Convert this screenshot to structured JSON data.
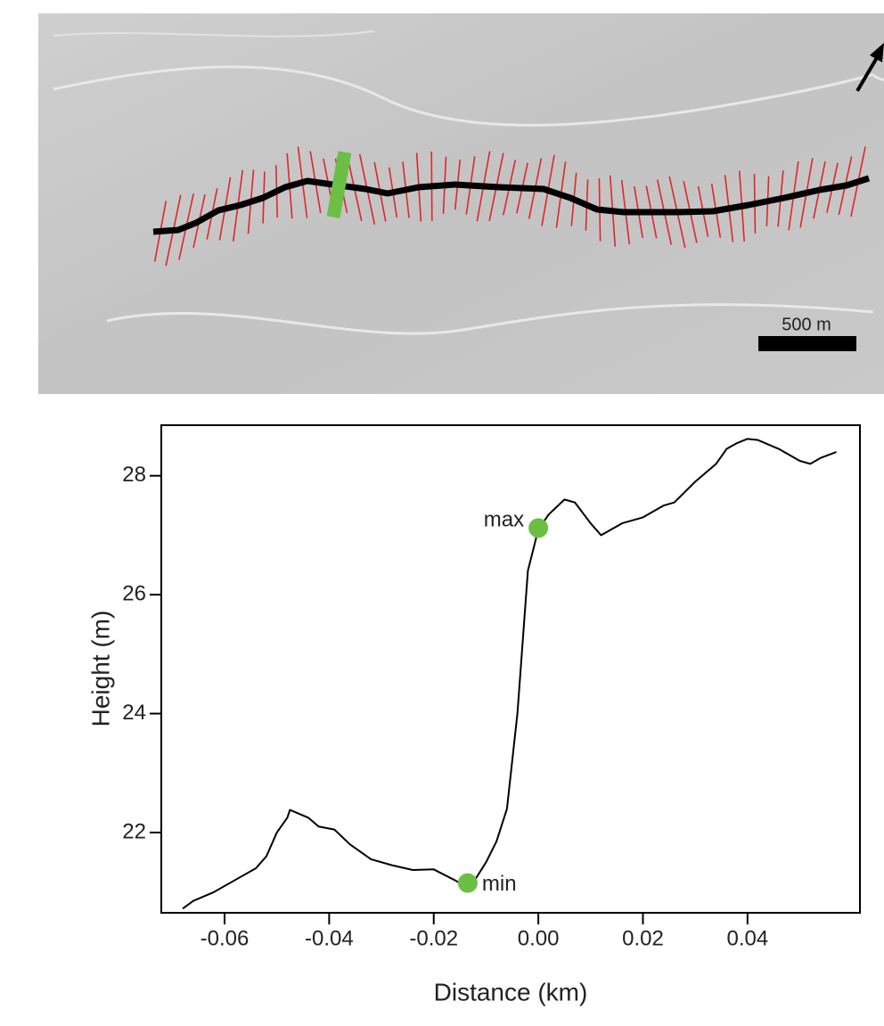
{
  "map": {
    "scale_label": "500 m"
  },
  "chart_data": {
    "type": "line",
    "x_label": "Distance (km)",
    "y_label": "Height (m)",
    "x": [
      -0.068,
      -0.066,
      -0.062,
      -0.058,
      -0.054,
      -0.052,
      -0.05,
      -0.048,
      -0.0475,
      -0.044,
      -0.042,
      -0.039,
      -0.036,
      -0.032,
      -0.028,
      -0.024,
      -0.02,
      -0.016,
      -0.014,
      -0.0125,
      -0.01,
      -0.008,
      -0.006,
      -0.004,
      -0.002,
      0.0,
      0.002,
      0.005,
      0.007,
      0.01,
      0.012,
      0.013,
      0.016,
      0.02,
      0.024,
      0.026,
      0.03,
      0.034,
      0.036,
      0.038,
      0.04,
      0.042,
      0.046,
      0.05,
      0.052,
      0.054,
      0.057
    ],
    "values": [
      20.72,
      20.85,
      21.0,
      21.2,
      21.4,
      21.6,
      22.0,
      22.25,
      22.38,
      22.25,
      22.1,
      22.05,
      21.8,
      21.55,
      21.45,
      21.37,
      21.38,
      21.2,
      21.1,
      21.15,
      21.5,
      21.85,
      22.4,
      24.0,
      26.4,
      27.1,
      27.35,
      27.6,
      27.55,
      27.2,
      27.0,
      27.05,
      27.2,
      27.3,
      27.5,
      27.55,
      27.9,
      28.2,
      28.45,
      28.55,
      28.62,
      28.6,
      28.45,
      28.25,
      28.2,
      28.3,
      28.4
    ],
    "color": "#000000",
    "points": [
      {
        "label": "max",
        "x": 0.0,
        "y": 27.12
      },
      {
        "label": "min",
        "x": -0.0135,
        "y": 21.15
      }
    ],
    "point_color": "#6cbf45",
    "xlim": [
      -0.0721,
      0.0615
    ],
    "ylim": [
      20.65,
      28.85
    ],
    "xticks": [
      -0.06,
      -0.04,
      -0.02,
      {
        "value": 0,
        "label": "0.00"
      },
      0.02,
      0.04
    ],
    "yticks": [
      22,
      24,
      26,
      28
    ]
  }
}
